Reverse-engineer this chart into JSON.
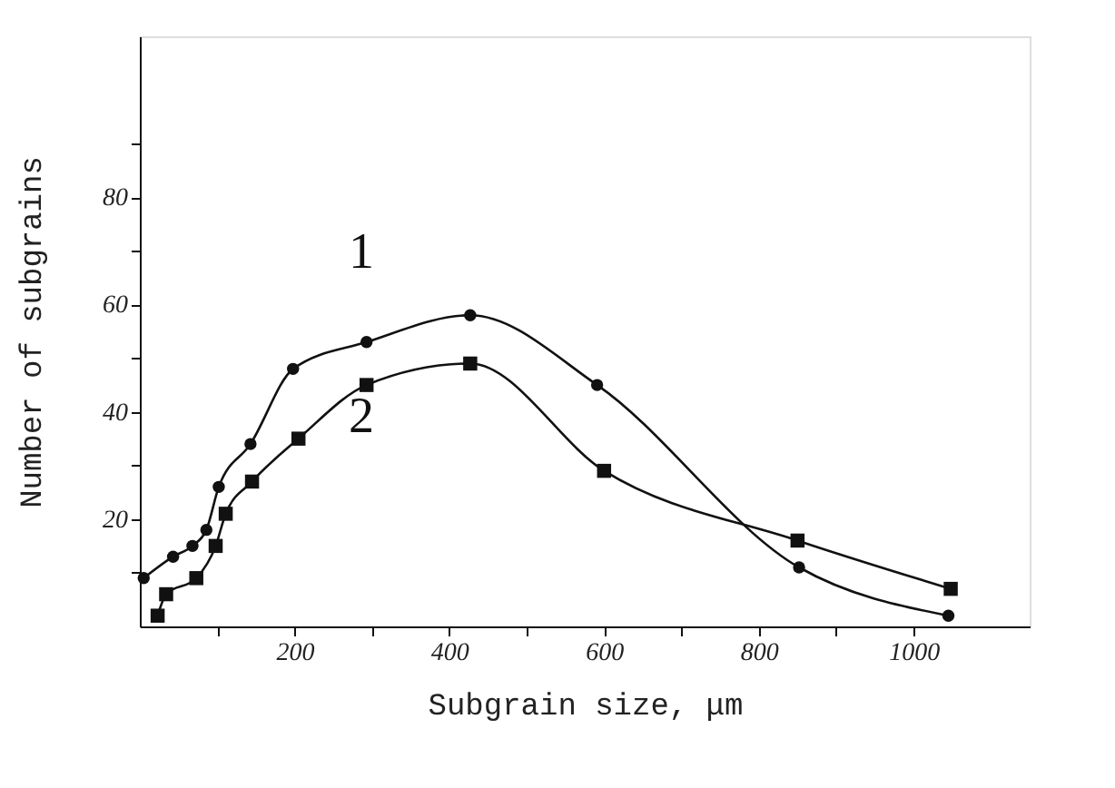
{
  "chart_data": {
    "type": "line",
    "xlabel": "Subgrain size, μm",
    "ylabel": "Number of subgrains",
    "xlim": [
      0,
      1150
    ],
    "ylim": [
      0,
      110
    ],
    "xticks": [
      {
        "value": 100,
        "label": null
      },
      200,
      {
        "value": 300,
        "label": null
      },
      400,
      {
        "value": 500,
        "label": null
      },
      600,
      {
        "value": 700,
        "label": null
      },
      800,
      {
        "value": 900,
        "label": null
      },
      1000
    ],
    "yticks": [
      {
        "value": 10,
        "label": null
      },
      20,
      {
        "value": 30,
        "label": null
      },
      40,
      {
        "value": 50,
        "label": null
      },
      60,
      {
        "value": 70,
        "label": null
      },
      80,
      {
        "value": 90,
        "label": null
      }
    ],
    "grid": false,
    "line_style": "solid",
    "series": [
      {
        "name": "1",
        "color": "#111111",
        "marker": "circle",
        "x": [
          5,
          43,
          68,
          86,
          102,
          143,
          198,
          293,
          427,
          591,
          852,
          1045
        ],
        "values": [
          9,
          13,
          15,
          18,
          26,
          34,
          48,
          53,
          58,
          45,
          11,
          2
        ]
      },
      {
        "name": "2",
        "color": "#111111",
        "marker": "square",
        "x": [
          23,
          34,
          73,
          98,
          111,
          145,
          205,
          293,
          427,
          600,
          850,
          1048
        ],
        "values": [
          2,
          6,
          9,
          15,
          21,
          27,
          35,
          45,
          49,
          29,
          16,
          7
        ]
      }
    ]
  }
}
